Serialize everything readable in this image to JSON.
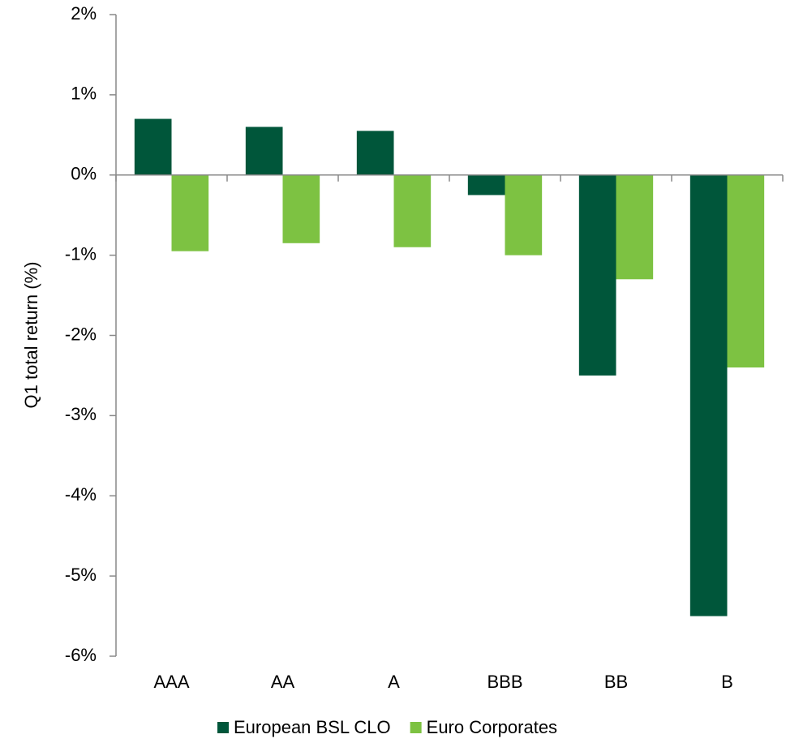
{
  "chart_data": {
    "type": "bar",
    "y_axis_label": "Q1 total return (%)",
    "categories": [
      "AAA",
      "AA",
      "A",
      "BBB",
      "BB",
      "B"
    ],
    "series": [
      {
        "name": "European BSL CLO",
        "color": "#00563a",
        "values": [
          0.7,
          0.6,
          0.55,
          -0.25,
          -2.5,
          -5.5
        ]
      },
      {
        "name": "Euro Corporates",
        "color": "#7dc242",
        "values": [
          -0.95,
          -0.85,
          -0.9,
          -1.0,
          -1.3,
          -2.4
        ]
      }
    ],
    "ylim": [
      -6,
      2
    ],
    "yticks": [
      {
        "value": -6,
        "label": "-6%"
      },
      {
        "value": -5,
        "label": "-5%"
      },
      {
        "value": -4,
        "label": "-4%"
      },
      {
        "value": -3,
        "label": "-3%"
      },
      {
        "value": -2,
        "label": "-2%"
      },
      {
        "value": -1,
        "label": "-1%"
      },
      {
        "value": 0,
        "label": "0%"
      },
      {
        "value": 1,
        "label": "1%"
      },
      {
        "value": 2,
        "label": "2%"
      }
    ],
    "legend": "bottom"
  }
}
